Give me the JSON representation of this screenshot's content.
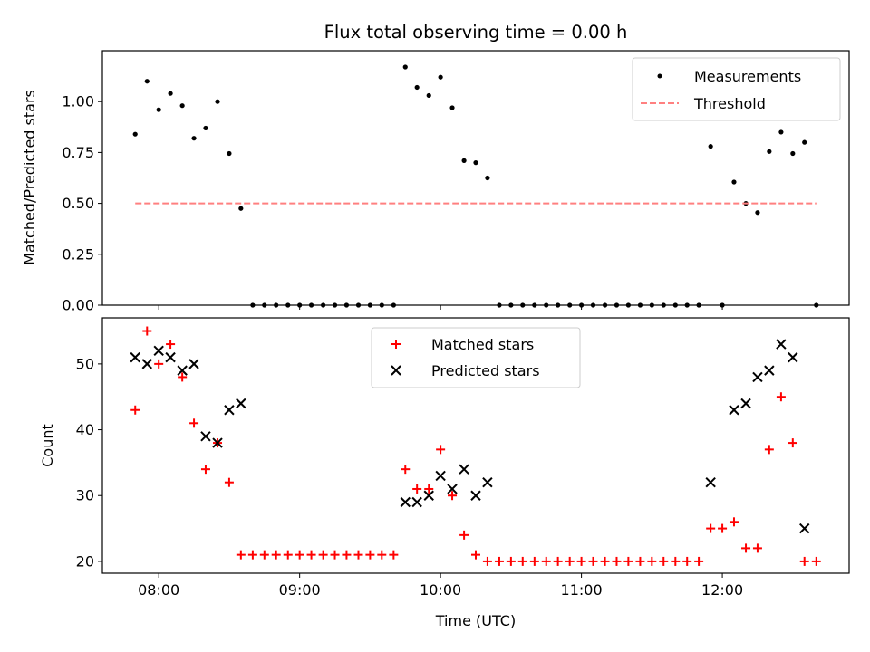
{
  "chart_data": [
    {
      "type": "scatter",
      "title": "Flux total observing time = 0.00 h",
      "xlabel": "",
      "ylabel": "Matched/Predicted stars",
      "xlim": [
        7.6,
        12.9
      ],
      "ylim": [
        0,
        1.25
      ],
      "yticks": [
        0.0,
        0.25,
        0.5,
        0.75,
        1.0
      ],
      "ytick_labels": [
        "0.00",
        "0.25",
        "0.50",
        "0.75",
        "1.00"
      ],
      "legend_position": "upper right",
      "series": [
        {
          "name": "Measurements",
          "marker": "dot",
          "color": "#000000",
          "x": [
            7.833,
            7.917,
            8.0,
            8.083,
            8.167,
            8.25,
            8.333,
            8.417,
            8.5,
            8.583,
            8.667,
            8.75,
            8.833,
            8.917,
            9.0,
            9.083,
            9.167,
            9.25,
            9.333,
            9.417,
            9.5,
            9.583,
            9.667,
            9.75,
            9.833,
            9.917,
            10.0,
            10.083,
            10.167,
            10.25,
            10.333,
            10.417,
            10.5,
            10.583,
            10.667,
            10.75,
            10.833,
            10.917,
            11.0,
            11.083,
            11.167,
            11.25,
            11.333,
            11.417,
            11.5,
            11.583,
            11.667,
            11.75,
            11.833,
            11.917,
            12.0,
            12.083,
            12.167,
            12.25,
            12.333,
            12.417,
            12.5,
            12.583,
            12.667
          ],
          "y": [
            0.84,
            1.1,
            0.96,
            1.04,
            0.98,
            0.82,
            0.87,
            1.0,
            0.745,
            0.475,
            0,
            0,
            0,
            0,
            0,
            0,
            0,
            0,
            0,
            0,
            0,
            0,
            0,
            1.17,
            1.07,
            1.03,
            1.12,
            0.97,
            0.71,
            0.7,
            0.625,
            0,
            0,
            0,
            0,
            0,
            0,
            0,
            0,
            0,
            0,
            0,
            0,
            0,
            0,
            0,
            0,
            0,
            0,
            0.78,
            0,
            0.605,
            0.5,
            0.455,
            0.755,
            0.85,
            0.745,
            0.8,
            0
          ]
        },
        {
          "name": "Threshold",
          "style": "dashed",
          "color": "#ff8080",
          "x": [
            7.833,
            12.667
          ],
          "y": [
            0.5,
            0.5
          ]
        }
      ]
    },
    {
      "type": "scatter",
      "title": "",
      "xlabel": "Time (UTC)",
      "ylabel": "Count",
      "xlim": [
        7.6,
        12.9
      ],
      "ylim": [
        18.2,
        57.0
      ],
      "yticks": [
        20,
        30,
        40,
        50
      ],
      "ytick_labels": [
        "20",
        "30",
        "40",
        "50"
      ],
      "xticks": [
        8,
        9,
        10,
        11,
        12
      ],
      "xtick_labels": [
        "08:00",
        "09:00",
        "10:00",
        "11:00",
        "12:00"
      ],
      "legend_position": "upper center",
      "series": [
        {
          "name": "Matched stars",
          "marker": "plus",
          "color": "#ff0000",
          "x": [
            7.833,
            7.917,
            8.0,
            8.083,
            8.167,
            8.25,
            8.333,
            8.417,
            8.5,
            8.583,
            8.667,
            8.75,
            8.833,
            8.917,
            9.0,
            9.083,
            9.167,
            9.25,
            9.333,
            9.417,
            9.5,
            9.583,
            9.667,
            9.75,
            9.833,
            9.917,
            10.0,
            10.083,
            10.167,
            10.25,
            10.333,
            10.417,
            10.5,
            10.583,
            10.667,
            10.75,
            10.833,
            10.917,
            11.0,
            11.083,
            11.167,
            11.25,
            11.333,
            11.417,
            11.5,
            11.583,
            11.667,
            11.75,
            11.833,
            11.917,
            12.0,
            12.083,
            12.167,
            12.25,
            12.333,
            12.417,
            12.5,
            12.583,
            12.667
          ],
          "y": [
            43,
            55,
            50,
            53,
            48,
            41,
            34,
            38,
            32,
            21,
            21,
            21,
            21,
            21,
            21,
            21,
            21,
            21,
            21,
            21,
            21,
            21,
            21,
            34,
            31,
            31,
            37,
            30,
            24,
            21,
            20,
            20,
            20,
            20,
            20,
            20,
            20,
            20,
            20,
            20,
            20,
            20,
            20,
            20,
            20,
            20,
            20,
            20,
            20,
            25,
            25,
            26,
            22,
            22,
            37,
            45,
            38,
            20,
            20
          ]
        },
        {
          "name": "Predicted stars",
          "marker": "x",
          "color": "#000000",
          "x": [
            7.833,
            7.917,
            8.0,
            8.083,
            8.167,
            8.25,
            8.333,
            8.417,
            8.5,
            8.583,
            9.75,
            9.833,
            9.917,
            10.0,
            10.083,
            10.167,
            10.25,
            10.333,
            11.917,
            12.083,
            12.167,
            12.25,
            12.333,
            12.417,
            12.5,
            12.583
          ],
          "y": [
            51,
            50,
            52,
            51,
            49,
            50,
            39,
            38,
            43,
            44,
            29,
            29,
            30,
            33,
            31,
            34,
            30,
            32,
            32,
            43,
            44,
            48,
            49,
            53,
            51,
            25
          ]
        }
      ]
    }
  ]
}
